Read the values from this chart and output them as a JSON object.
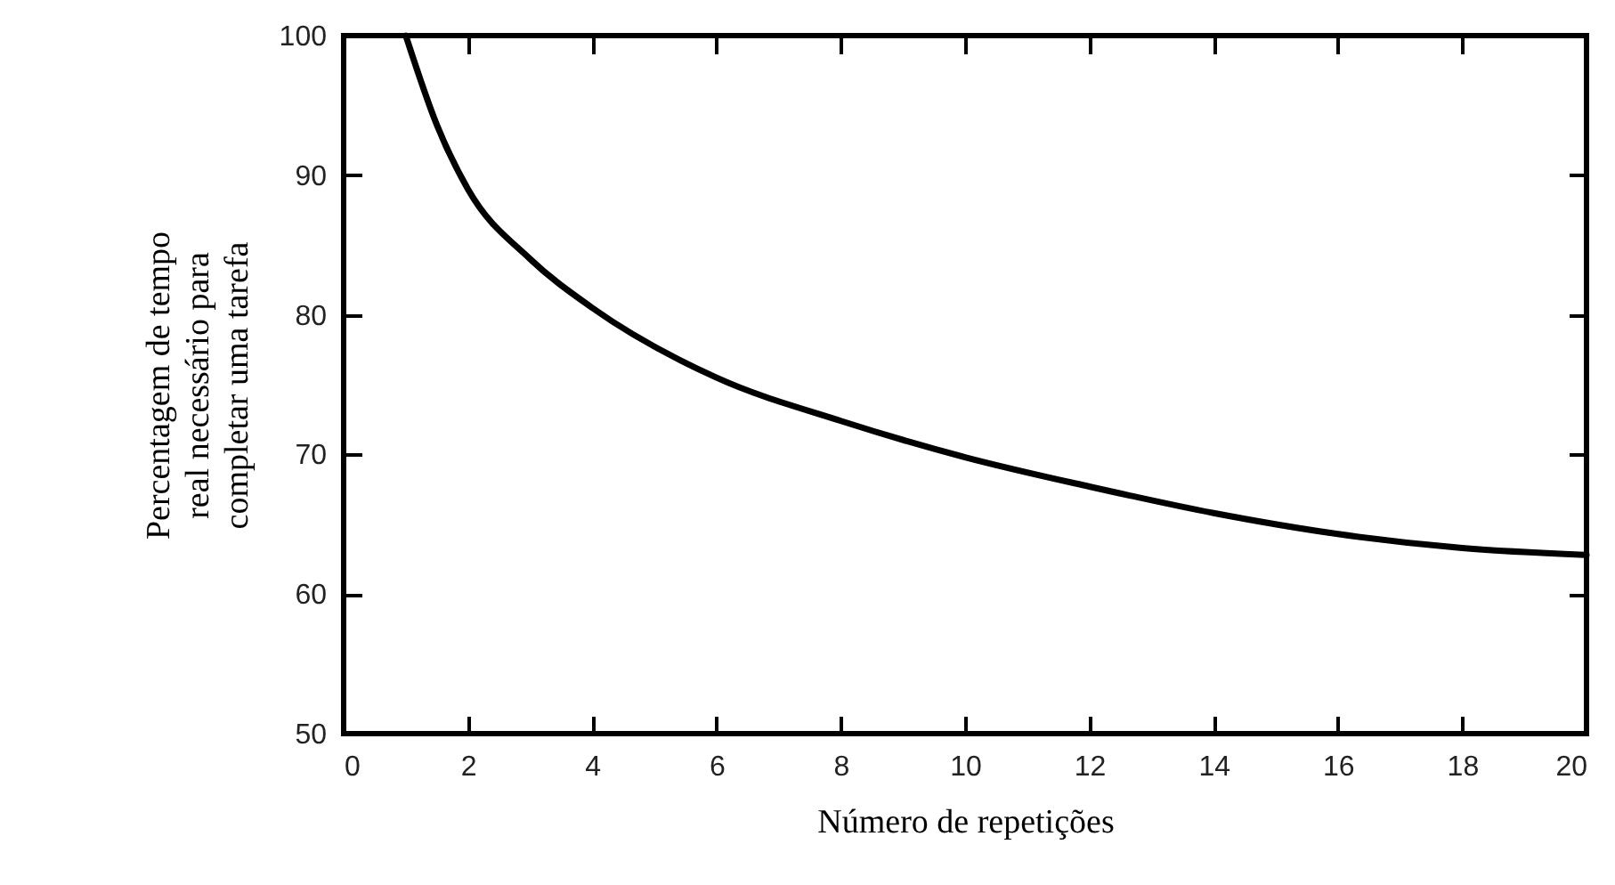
{
  "chart_data": {
    "type": "line",
    "xlabel": "Número de repetições",
    "ylabel": "Percentagem de tempo\nreal necessário para\ncompletar uma tarefa",
    "x": [
      1,
      1.5,
      2,
      3,
      4,
      6,
      8,
      10,
      12,
      14,
      16,
      18,
      20
    ],
    "series": [
      {
        "color": "#000000",
        "values": [
          100,
          93.6,
          89,
          84,
          80.5,
          75.5,
          72.4,
          69.8,
          67.7,
          65.8,
          64.3,
          63.3,
          62.8
        ]
      }
    ],
    "xlim": [
      0,
      20
    ],
    "xticks": [
      0,
      2,
      4,
      6,
      8,
      10,
      12,
      14,
      16,
      18,
      20
    ],
    "ylim": [
      50,
      100
    ],
    "yticks": [
      50,
      60,
      70,
      80,
      90,
      100
    ],
    "grid": false,
    "marker": "none",
    "line_style": "solid"
  }
}
